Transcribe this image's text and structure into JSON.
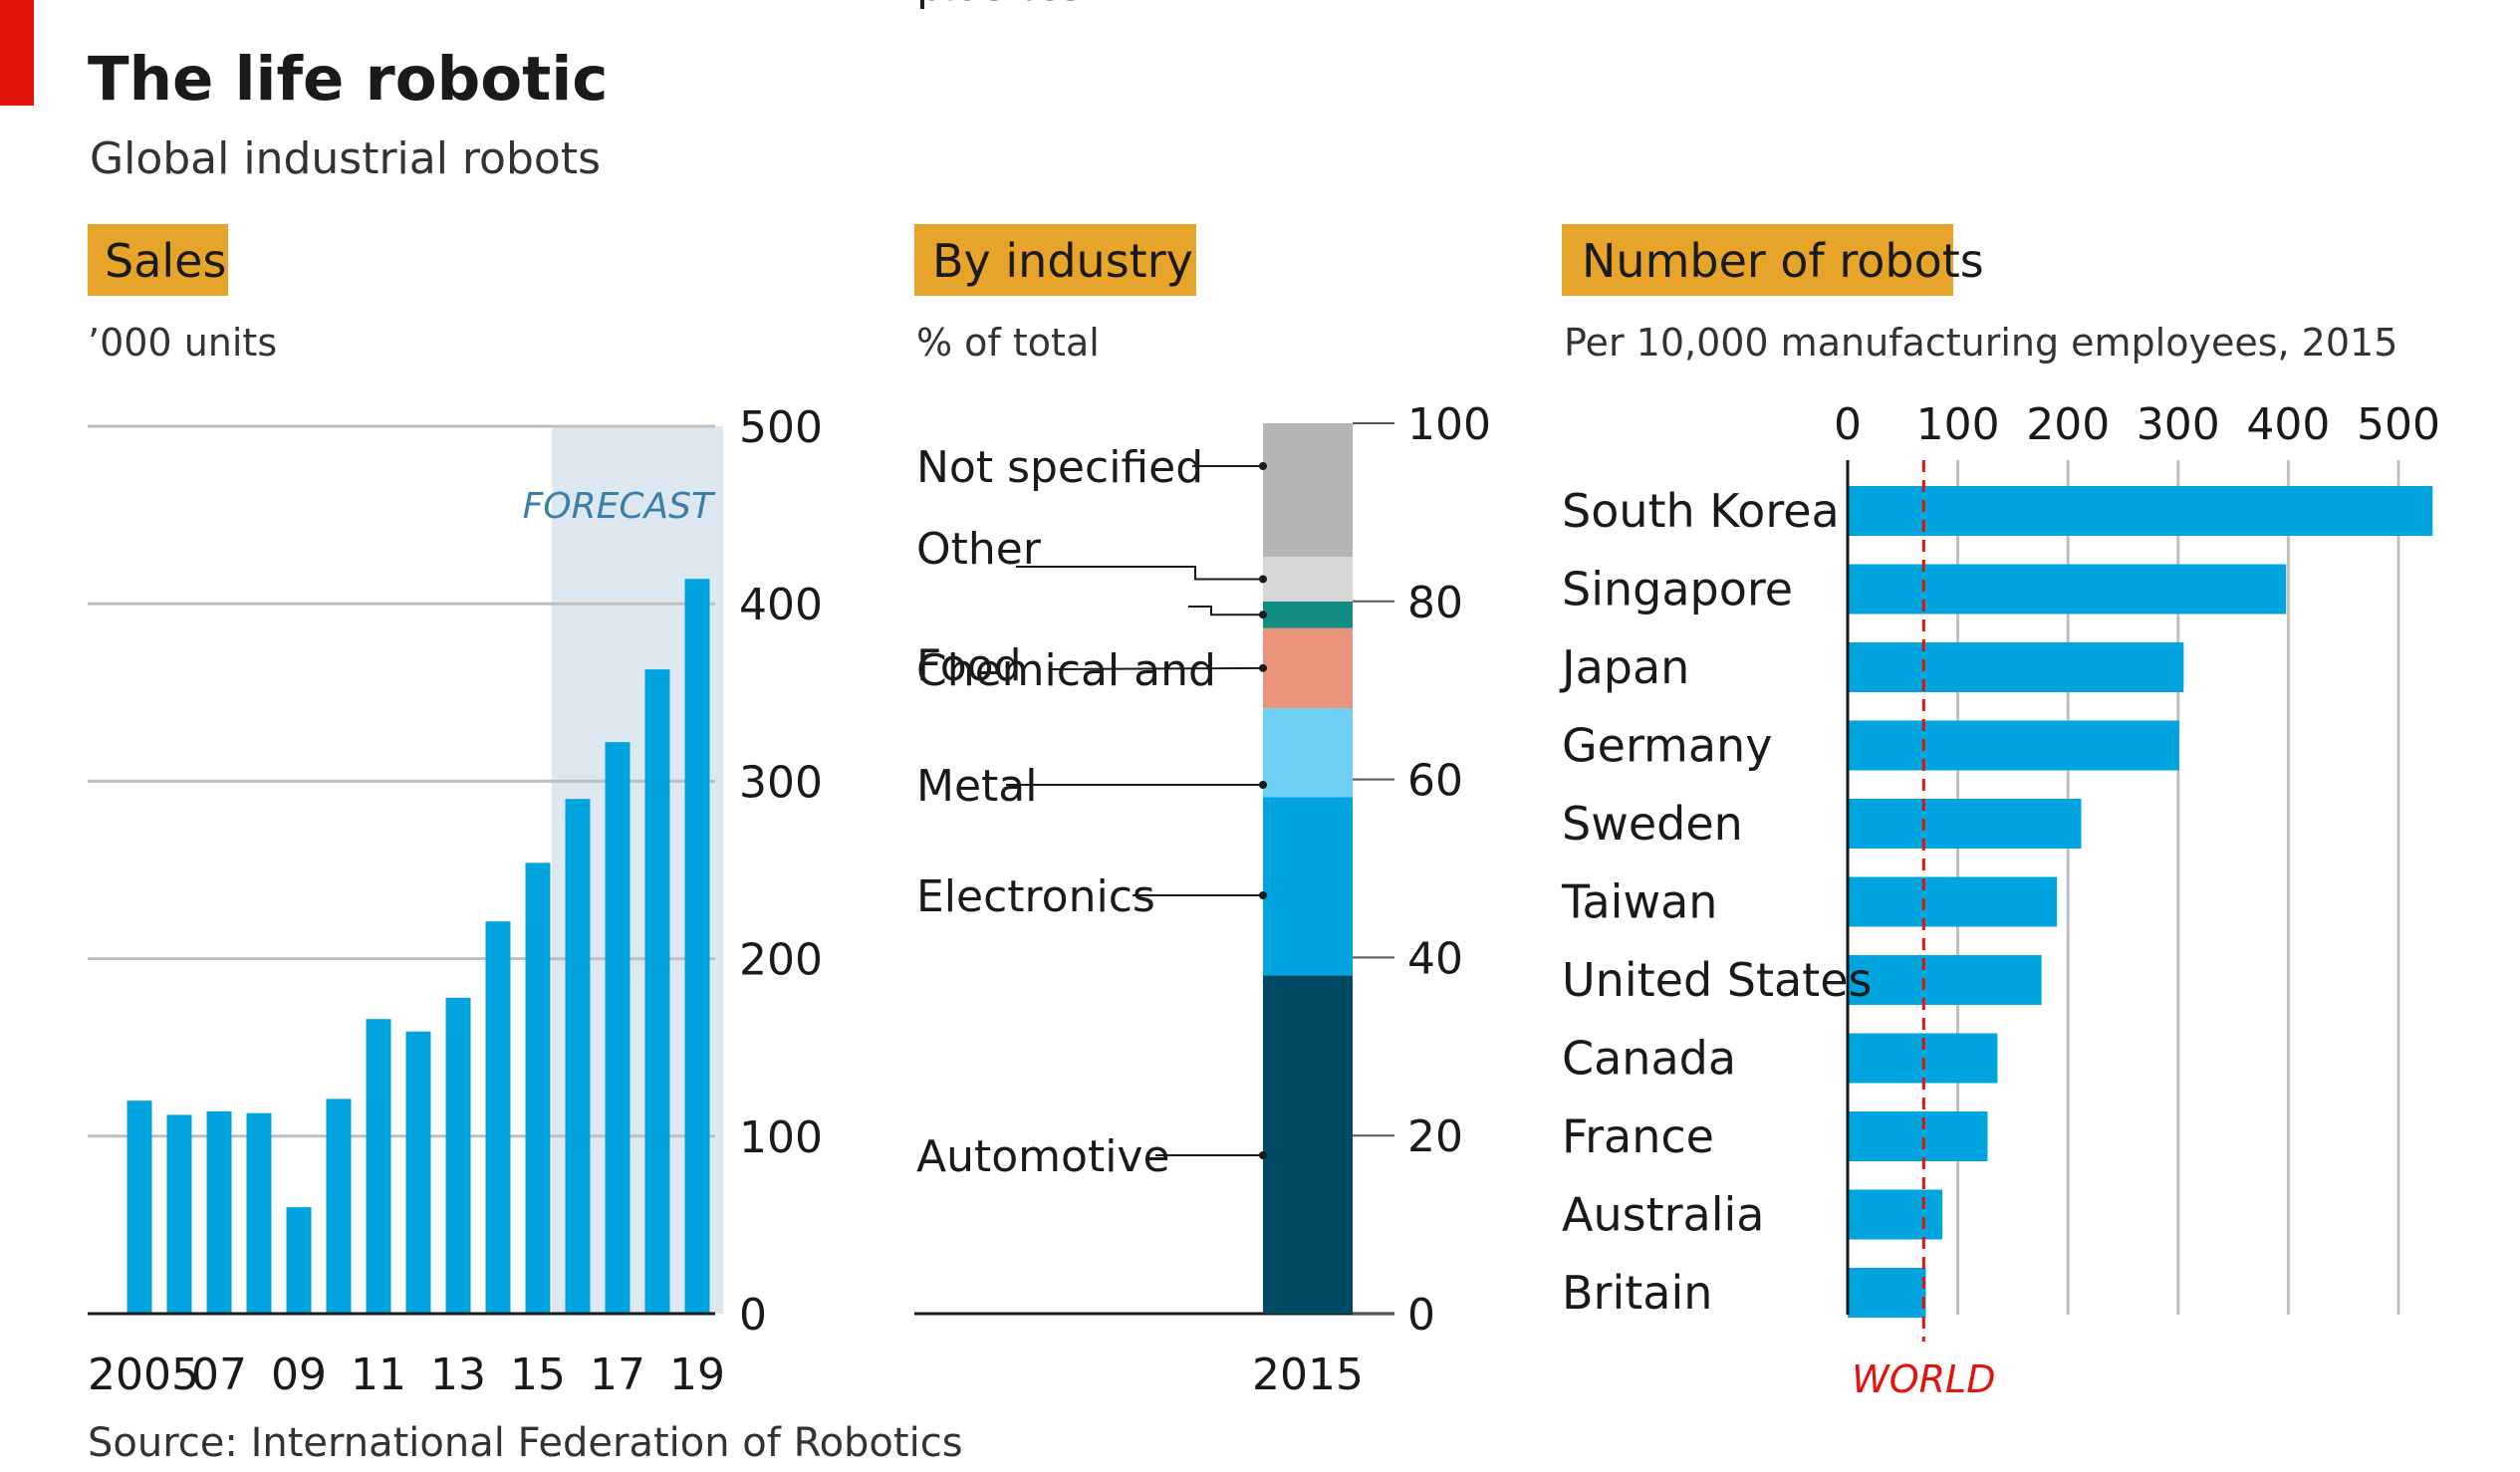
{
  "title": "The life robotic",
  "subtitle": "Global industrial robots",
  "source": "Source: International Federation of Robotics",
  "colors": {
    "brand_red": "#e3120b",
    "bar_blue": "#00a5e0",
    "label_box": "#e6a42b",
    "forecast_shade": "#dde7ef",
    "forecast_text": "#3b7fa8",
    "grid": "#bfbfbf",
    "world_line": "#e3120b"
  },
  "panels": {
    "sales": {
      "label": "Sales",
      "unit": "’000 units",
      "forecast_label": "FORECAST"
    },
    "industry": {
      "label": "By industry",
      "unit": "% of total",
      "x_label": "2015"
    },
    "robots": {
      "label": "Number of robots",
      "unit": "Per 10,000 manufacturing employees, 2015",
      "world_label": "WORLD"
    }
  },
  "chart_data": [
    {
      "type": "bar",
      "title": "Sales",
      "ylabel": "’000 units",
      "x_tick_labels": [
        "2005",
        "07",
        "09",
        "11",
        "13",
        "15",
        "17",
        "19"
      ],
      "categories": [
        "2005",
        "2006",
        "2007",
        "2008",
        "2009",
        "2010",
        "2011",
        "2012",
        "2013",
        "2014",
        "2015",
        "2016",
        "2017",
        "2018",
        "2019"
      ],
      "values": [
        120,
        112,
        114,
        113,
        60,
        121,
        166,
        159,
        178,
        221,
        254,
        290,
        322,
        363,
        414
      ],
      "forecast_from": "2016",
      "ylim": [
        0,
        500
      ],
      "yticks": [
        0,
        100,
        200,
        300,
        400,
        500
      ],
      "grid": true
    },
    {
      "type": "bar",
      "title": "By industry",
      "ylabel": "% of total",
      "categories": [
        "2015"
      ],
      "stacked": true,
      "series": [
        {
          "name": "Automotive",
          "value": 38,
          "color": "#004a66"
        },
        {
          "name": "Electronics",
          "value": 20,
          "color": "#00a5e0"
        },
        {
          "name": "Metal",
          "value": 10,
          "color": "#6fd0f5"
        },
        {
          "name": "Chemical and plastics",
          "value": 9,
          "color": "#e8937a"
        },
        {
          "name": "Food",
          "value": 3,
          "color": "#138d84"
        },
        {
          "name": "Other",
          "value": 5,
          "color": "#d7d7d7"
        },
        {
          "name": "Not specified",
          "value": 15,
          "color": "#b5b5b5"
        }
      ],
      "ylim": [
        0,
        100
      ],
      "yticks": [
        0,
        20,
        40,
        60,
        80,
        100
      ]
    },
    {
      "type": "bar",
      "orientation": "horizontal",
      "title": "Number of robots",
      "xlabel": "Per 10,000 manufacturing employees, 2015",
      "categories": [
        "South Korea",
        "Singapore",
        "Japan",
        "Germany",
        "Sweden",
        "Taiwan",
        "United States",
        "Canada",
        "France",
        "Australia",
        "Britain"
      ],
      "values": [
        531,
        398,
        305,
        301,
        212,
        190,
        176,
        136,
        127,
        86,
        71
      ],
      "reference_line": {
        "label": "WORLD",
        "value": 69
      },
      "xlim": [
        0,
        530
      ],
      "xticks": [
        0,
        100,
        200,
        300,
        400,
        500
      ],
      "grid": true
    }
  ]
}
